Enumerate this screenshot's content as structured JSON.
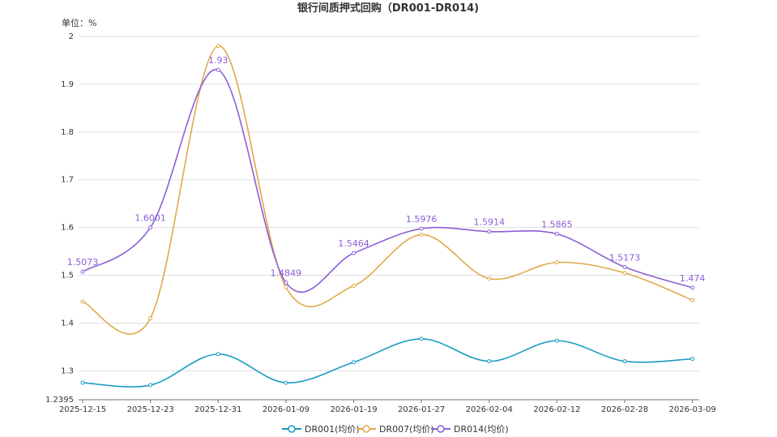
{
  "chart_data": {
    "type": "line",
    "title": "银行间质押式回购（DR001-DR014)",
    "unit_label": "单位：%",
    "ylim": [
      1.2395,
      2
    ],
    "yticks": [
      "1.2395",
      "1.3",
      "1.4",
      "1.5",
      "1.6",
      "1.7",
      "1.8",
      "1.9",
      "2"
    ],
    "x_tick_labels": [
      "2025-12-15",
      "2025-12-23",
      "2025-12-31",
      "2026-01-09",
      "2026-01-19",
      "2026-01-27",
      "2026-02-04",
      "2026-02-12",
      "2026-02-28",
      "2026-03-09"
    ],
    "x": [
      "2025-12-15",
      "2025-12-23",
      "2025-12-31",
      "2026-01-09",
      "2026-01-19",
      "2026-01-27",
      "2026-02-04",
      "2026-02-12",
      "2026-02-28",
      "2026-03-09"
    ],
    "grid": true,
    "legend_position": "bottom",
    "series": [
      {
        "name": "DR001(均价)",
        "color": "#1a9bc4",
        "values": [
          1.275,
          1.27,
          1.335,
          1.275,
          1.318,
          1.367,
          1.32,
          1.363,
          1.32,
          1.325
        ]
      },
      {
        "name": "DR007(均价)",
        "color": "#e0a94a",
        "values": [
          1.445,
          1.41,
          1.98,
          1.475,
          1.478,
          1.585,
          1.493,
          1.527,
          1.505,
          1.448
        ]
      },
      {
        "name": "DR014(均价)",
        "color": "#8b5fd6",
        "values": [
          1.5073,
          1.6001,
          1.93,
          1.4849,
          1.5464,
          1.5976,
          1.5914,
          1.5865,
          1.5173,
          1.474
        ]
      }
    ],
    "data_labels": {
      "series": "DR014(均价)",
      "values": [
        "1.5073",
        "1.6001",
        "1.93",
        "1.4849",
        "1.5464",
        "1.5976",
        "1.5914",
        "1.5865",
        "1.5173",
        "1.474"
      ]
    }
  }
}
